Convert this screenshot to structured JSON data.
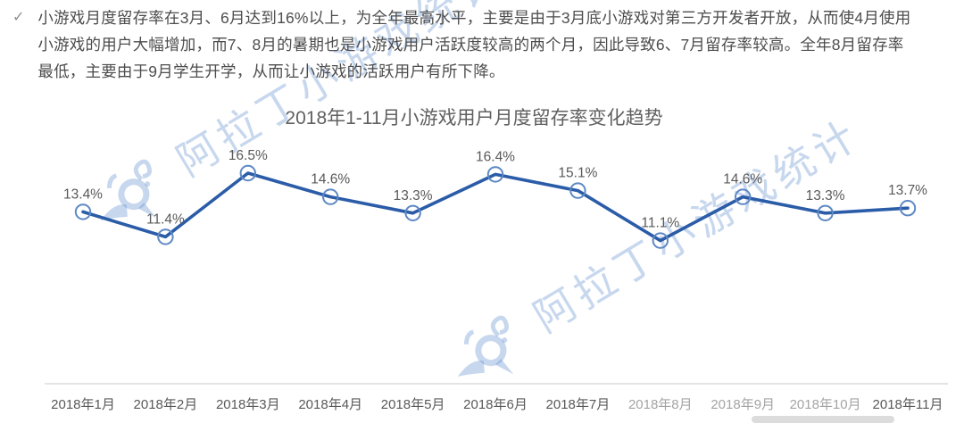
{
  "summary": {
    "bullet": "✓",
    "lines": [
      "小游戏月度留存率在3月、6月达到16%以上，为全年最高水平，主要是由于3月底小游戏对第三方开发者开放，从而使4月使用",
      "小游戏的用户大幅增加，而7、8月的暑期也是小游戏用户活跃度较高的两个月，因此导致6、7月留存率较高。全年8月留存率",
      "最低，主要由于9月学生开学，从而让小游戏的活跃用户有所下降。"
    ]
  },
  "chart_data": {
    "type": "line",
    "title": "2018年1-11月小游戏用户月度留存率变化趋势",
    "categories": [
      "2018年1月",
      "2018年2月",
      "2018年3月",
      "2018年4月",
      "2018年5月",
      "2018年6月",
      "2018年7月",
      "2018年8月",
      "2018年9月",
      "2018年10月",
      "2018年11月"
    ],
    "values": [
      13.4,
      11.4,
      16.5,
      14.6,
      13.3,
      16.4,
      15.1,
      11.1,
      14.6,
      13.3,
      13.7
    ],
    "point_labels": [
      "13.4%",
      "11.4%",
      "16.5%",
      "14.6%",
      "13.3%",
      "16.4%",
      "15.1%",
      "11.1%",
      "14.6%",
      "13.3%",
      "13.7%"
    ],
    "unit": "%",
    "xlabel": "",
    "ylabel": "",
    "y_axis_visible": false,
    "grid": false,
    "legend": "none",
    "line_color": "#2b5ca8",
    "marker": "open-circle",
    "marker_color": "#5d88c4",
    "label_color": "#595959",
    "axis_color": "#dcdcdc",
    "faded_category_indexes": [
      7,
      8,
      9
    ]
  },
  "watermark": {
    "text": "阿拉丁小游戏统计",
    "logo": "aladdin-bird-logo",
    "color": "#a9c6ea"
  }
}
